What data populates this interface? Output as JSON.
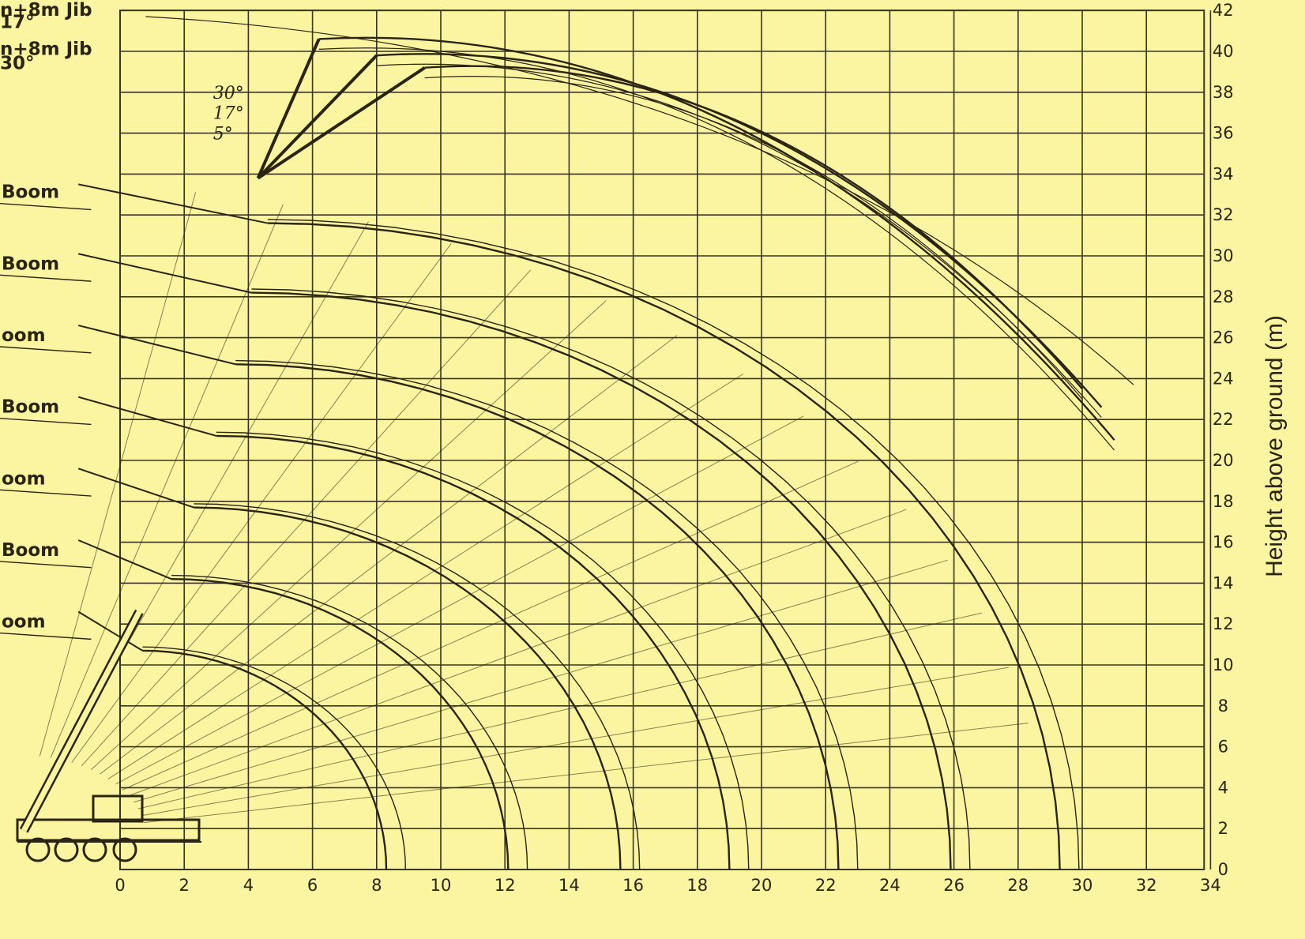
{
  "chart_data": {
    "type": "line",
    "title": "",
    "xlabel": "",
    "ylabel": "Height above ground (m)",
    "xlim": [
      -3.5,
      34
    ],
    "ylim": [
      0,
      42
    ],
    "x_ticks": [
      0,
      2,
      4,
      6,
      8,
      10,
      12,
      14,
      16,
      18,
      20,
      22,
      24,
      26,
      28,
      30,
      32,
      34
    ],
    "y_ticks": [
      0,
      2,
      4,
      6,
      8,
      10,
      12,
      14,
      16,
      18,
      20,
      22,
      24,
      26,
      28,
      30,
      32,
      34,
      36,
      38,
      40,
      42
    ],
    "grid": true,
    "colors": {
      "background": "#fbf4a0",
      "grid": "#3a3520",
      "curve": "#2a2410"
    },
    "boom_labels": [
      {
        "text": "n+8m Jib",
        "y": 42.0
      },
      {
        "text": "17°",
        "y": 41.4
      },
      {
        "text": "n+8m Jib",
        "y": 40.1
      },
      {
        "text": "30°",
        "y": 39.4
      },
      {
        "text": "Boom",
        "y": 33.1
      },
      {
        "text": "Boom",
        "y": 29.6
      },
      {
        "text": "oom",
        "y": 26.1
      },
      {
        "text": "Boom",
        "y": 22.6
      },
      {
        "text": "oom",
        "y": 19.1
      },
      {
        "text": "Boom",
        "y": 15.6
      },
      {
        "text": "oom",
        "y": 12.1
      }
    ],
    "jib_angle_labels": [
      "30°",
      "17°",
      "5°"
    ],
    "series": [
      {
        "pivot": [
          -3.2,
          1.6
        ],
        "tip": [
          0.7,
          12.9
        ],
        "reach": 8.3
      },
      {
        "pivot": [
          -3.2,
          1.6
        ],
        "tip": [
          1.6,
          16.4
        ],
        "reach": 12.1
      },
      {
        "pivot": [
          -3.2,
          1.6
        ],
        "tip": [
          2.3,
          19.9
        ],
        "reach": 15.6
      },
      {
        "pivot": [
          -3.2,
          1.6
        ],
        "tip": [
          3.0,
          23.4
        ],
        "reach": 19.0
      },
      {
        "pivot": [
          -3.2,
          1.6
        ],
        "tip": [
          3.6,
          26.9
        ],
        "reach": 22.4
      },
      {
        "pivot": [
          -3.2,
          1.6
        ],
        "tip": [
          4.1,
          30.4
        ],
        "reach": 25.9
      },
      {
        "pivot": [
          -3.2,
          1.6
        ],
        "tip": [
          4.6,
          33.8
        ],
        "reach": 29.3
      }
    ],
    "jib_series": [
      {
        "angle": "30°",
        "start": [
          9.5,
          39.2
        ],
        "end": [
          30.0,
          23.5
        ]
      },
      {
        "angle": "17°",
        "start": [
          8.0,
          39.8
        ],
        "end": [
          30.6,
          22.6
        ]
      },
      {
        "angle": "5°",
        "start": [
          6.2,
          40.6
        ],
        "end": [
          31.0,
          21.0
        ]
      }
    ]
  }
}
